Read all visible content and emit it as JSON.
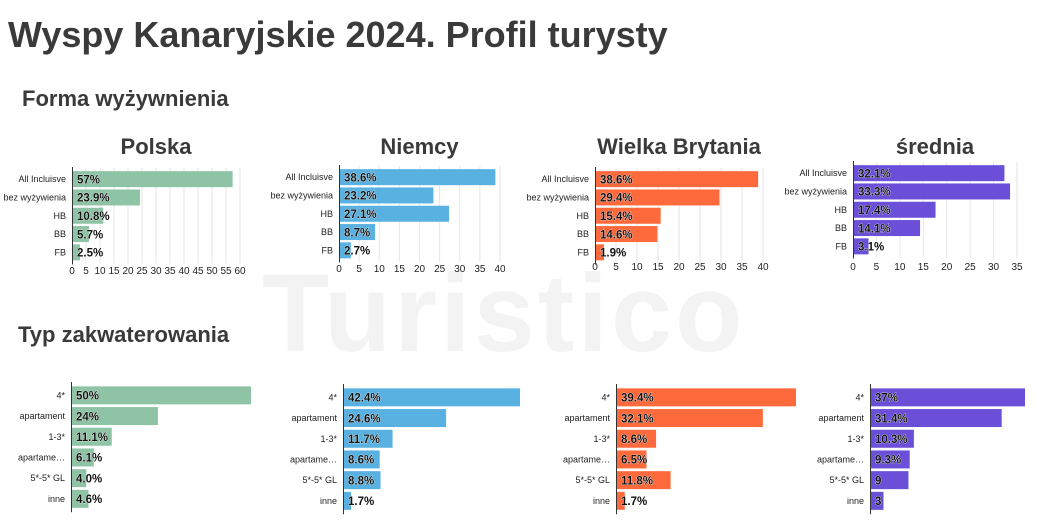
{
  "title": "Wyspy Kanaryjskie 2024. Profil turysty",
  "sections": {
    "meals": "Forma wyżywnienia",
    "accommodation": "Typ zakwaterowania"
  },
  "watermark": "Turistico",
  "colors": {
    "polska": "#8fc3a5",
    "niemcy": "#59b1e1",
    "wielka_brytania": "#ff6a3d",
    "srednia": "#6c4fd8"
  },
  "chart_data": [
    {
      "type": "bar",
      "orientation": "horizontal",
      "group": "meals",
      "title": "Polska",
      "color": "#8fc3a5",
      "categories": [
        "All Incluisve",
        "bez wyżywienia",
        "HB",
        "BB",
        "FB"
      ],
      "values": [
        57,
        23.9,
        10.8,
        5.7,
        2.5
      ],
      "labels": [
        "57%",
        "23.9%",
        "10.8%",
        "5.7%",
        "2.5%"
      ],
      "xlim": [
        0,
        60
      ],
      "ticks": [
        0,
        5,
        10,
        15,
        20,
        25,
        30,
        35,
        40,
        45,
        50,
        55,
        60
      ],
      "grid": true
    },
    {
      "type": "bar",
      "orientation": "horizontal",
      "group": "meals",
      "title": "Niemcy",
      "color": "#59b1e1",
      "categories": [
        "All Incluisve",
        "bez wyżywienia",
        "HB",
        "BB",
        "FB"
      ],
      "values": [
        38.6,
        23.2,
        27.1,
        8.7,
        2.7
      ],
      "labels": [
        "38.6%",
        "23.2%",
        "27.1%",
        "8.7%",
        "2.7%"
      ],
      "xlim": [
        0,
        40
      ],
      "ticks": [
        0,
        5,
        10,
        15,
        20,
        25,
        30,
        35,
        40
      ],
      "grid": true
    },
    {
      "type": "bar",
      "orientation": "horizontal",
      "group": "meals",
      "title": "Wielka Brytania",
      "color": "#ff6a3d",
      "categories": [
        "All Incluisve",
        "bez wyżywienia",
        "HB",
        "BB",
        "FB"
      ],
      "values": [
        38.6,
        29.4,
        15.4,
        14.6,
        1.9
      ],
      "labels": [
        "38.6%",
        "29.4%",
        "15.4%",
        "14.6%",
        "1.9%"
      ],
      "xlim": [
        0,
        40
      ],
      "ticks": [
        0,
        5,
        10,
        15,
        20,
        25,
        30,
        35,
        40
      ],
      "grid": true
    },
    {
      "type": "bar",
      "orientation": "horizontal",
      "group": "meals",
      "title": "średnia",
      "color": "#6c4fd8",
      "categories": [
        "All Incluisve",
        "bez wyżywienia",
        "HB",
        "BB",
        "FB"
      ],
      "values": [
        32.1,
        33.3,
        17.4,
        14.1,
        3.1
      ],
      "labels": [
        "32.1%",
        "33.3%",
        "17.4%",
        "14.1%",
        "3.1%"
      ],
      "xlim": [
        0,
        35
      ],
      "ticks": [
        0,
        5,
        10,
        15,
        20,
        25,
        30,
        35
      ],
      "grid": true
    },
    {
      "type": "bar",
      "orientation": "horizontal",
      "group": "accommodation",
      "title": "",
      "color": "#8fc3a5",
      "categories": [
        "4*",
        "apartament",
        "1-3*",
        "apartame…",
        "5*-5* GL",
        "inne"
      ],
      "values": [
        50,
        24,
        11.1,
        6.1,
        4.0,
        4.6
      ],
      "labels": [
        "50%",
        "24%",
        "11.1%",
        "6.1%",
        "4.0%",
        "4.6%"
      ],
      "xlim": [
        0,
        50
      ],
      "grid": false
    },
    {
      "type": "bar",
      "orientation": "horizontal",
      "group": "accommodation",
      "title": "",
      "color": "#59b1e1",
      "categories": [
        "4*",
        "apartament",
        "1-3*",
        "apartame…",
        "5*-5* GL",
        "inne"
      ],
      "values": [
        42.4,
        24.6,
        11.7,
        8.6,
        8.8,
        1.7
      ],
      "labels": [
        "42.4%",
        "24.6%",
        "11.7%",
        "8.6%",
        "8.8%",
        "1.7%"
      ],
      "xlim": [
        0,
        42.4
      ],
      "grid": false
    },
    {
      "type": "bar",
      "orientation": "horizontal",
      "group": "accommodation",
      "title": "",
      "color": "#ff6a3d",
      "categories": [
        "4*",
        "apartament",
        "1-3*",
        "apartame…",
        "5*-5* GL",
        "inne"
      ],
      "values": [
        39.4,
        32.1,
        8.6,
        6.5,
        11.8,
        1.7
      ],
      "labels": [
        "39.4%",
        "32.1%",
        "8.6%",
        "6.5%",
        "11.8%",
        "1.7%"
      ],
      "xlim": [
        0,
        39.4
      ],
      "grid": false
    },
    {
      "type": "bar",
      "orientation": "horizontal",
      "group": "accommodation",
      "title": "",
      "color": "#6c4fd8",
      "categories": [
        "4*",
        "apartament",
        "1-3*",
        "apartame…",
        "5*-5* GL",
        "inne"
      ],
      "values": [
        37,
        31.4,
        10.3,
        9.3,
        9,
        3
      ],
      "labels": [
        "37%",
        "31.4%",
        "10.3%",
        "9.3%",
        "9",
        "3"
      ],
      "xlim": [
        0,
        37
      ],
      "grid": false
    }
  ]
}
